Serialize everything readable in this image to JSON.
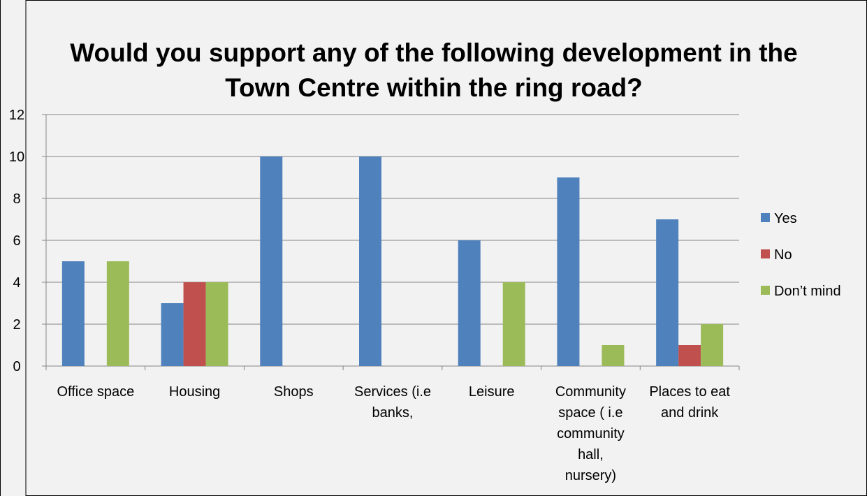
{
  "chart_data": {
    "type": "bar",
    "title": "Would you support any of the following development in the Town Centre within the ring road?",
    "title_lines": [
      "Would you support any of the following development in the",
      "Town Centre within the ring road?"
    ],
    "categories": [
      "Office space",
      "Housing",
      "Shops",
      "Services (i.e banks,",
      "Leisure",
      "Community space ( i.e community hall, nursery)",
      "Places to eat and drink"
    ],
    "category_label_lines": [
      [
        "Office space"
      ],
      [
        "Housing"
      ],
      [
        "Shops"
      ],
      [
        "Services (i.e",
        "banks,"
      ],
      [
        "Leisure"
      ],
      [
        "Community",
        "space ( i.e",
        "community",
        "hall,",
        "nursery)"
      ],
      [
        "Places to eat",
        "and drink"
      ]
    ],
    "series": [
      {
        "name": "Yes",
        "color": "#4f81bd",
        "values": [
          5,
          3,
          10,
          10,
          6,
          9,
          7
        ]
      },
      {
        "name": "No",
        "color": "#c0504d",
        "values": [
          0,
          4,
          0,
          0,
          0,
          0,
          1
        ]
      },
      {
        "name": "Don’t mind",
        "color": "#9bbb59",
        "values": [
          5,
          4,
          0,
          0,
          4,
          1,
          2
        ]
      }
    ],
    "ylim": [
      0,
      12
    ],
    "yticks": [
      0,
      2,
      4,
      6,
      8,
      10,
      12
    ],
    "grid": true,
    "legend_position": "right",
    "background": "#f2f2f2"
  }
}
